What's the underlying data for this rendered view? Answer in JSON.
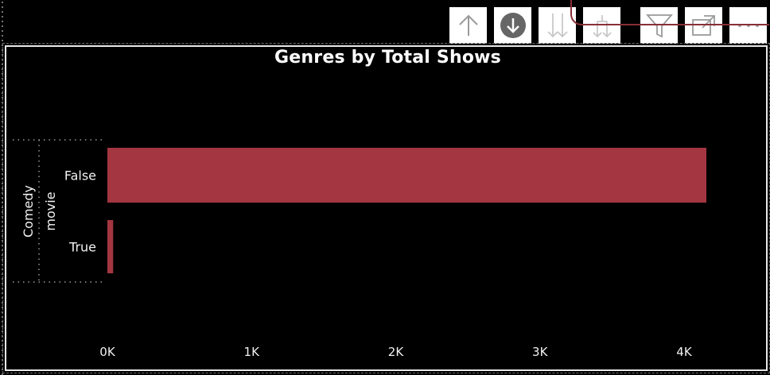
{
  "toolbar": {
    "buttons": [
      {
        "name": "drill-up-button",
        "icon": "arrow-up-icon"
      },
      {
        "name": "drill-mode-button",
        "icon": "arrow-down-circle-icon"
      },
      {
        "name": "next-level-button",
        "icon": "double-arrow-down-icon"
      },
      {
        "name": "expand-next-level-button",
        "icon": "fork-arrow-down-icon"
      },
      {
        "name": "filter-button",
        "icon": "funnel-icon"
      },
      {
        "name": "focus-mode-button",
        "icon": "expand-icon"
      },
      {
        "name": "more-options-button",
        "icon": "ellipsis-icon"
      }
    ]
  },
  "colors": {
    "bar": "#a33641",
    "background": "#000000",
    "text": "#f2f2f2"
  },
  "chart_data": {
    "type": "bar",
    "orientation": "horizontal",
    "title": "Genres by Total Shows",
    "group_label": "Comedy movie",
    "group_label_lines": [
      "Comedy",
      "movie"
    ],
    "categories": [
      "False",
      "True"
    ],
    "values": [
      4150,
      40
    ],
    "xlim": [
      0,
      4300
    ],
    "x_ticks": [
      0,
      1000,
      2000,
      3000,
      4000
    ],
    "x_tick_labels": [
      "0K",
      "1K",
      "2K",
      "3K",
      "4K"
    ],
    "grid": false,
    "legend": "none"
  }
}
